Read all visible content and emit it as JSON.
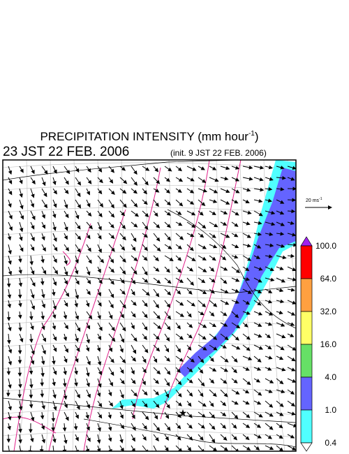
{
  "header": {
    "title": {
      "text": "PRECIPITATION INTENSITY (mm hour",
      "exponent": "-1",
      "close": ")"
    },
    "valid_time": "23 JST 22 FEB. 2006",
    "init_time": "(init. 9 JST 22 FEB. 2006)"
  },
  "wind_scale": {
    "text": "20 ms",
    "exponent": "-1"
  },
  "colorbar": {
    "labels": [
      "100.0",
      "64.0",
      "32.0",
      "16.0",
      "4.0",
      "1.0",
      "0.4"
    ],
    "colors": [
      "#a020f0",
      "#ff0000",
      "#ffa040",
      "#ffff66",
      "#66e066",
      "#6464ff",
      "#50ffff",
      "#ffffff"
    ]
  }
}
